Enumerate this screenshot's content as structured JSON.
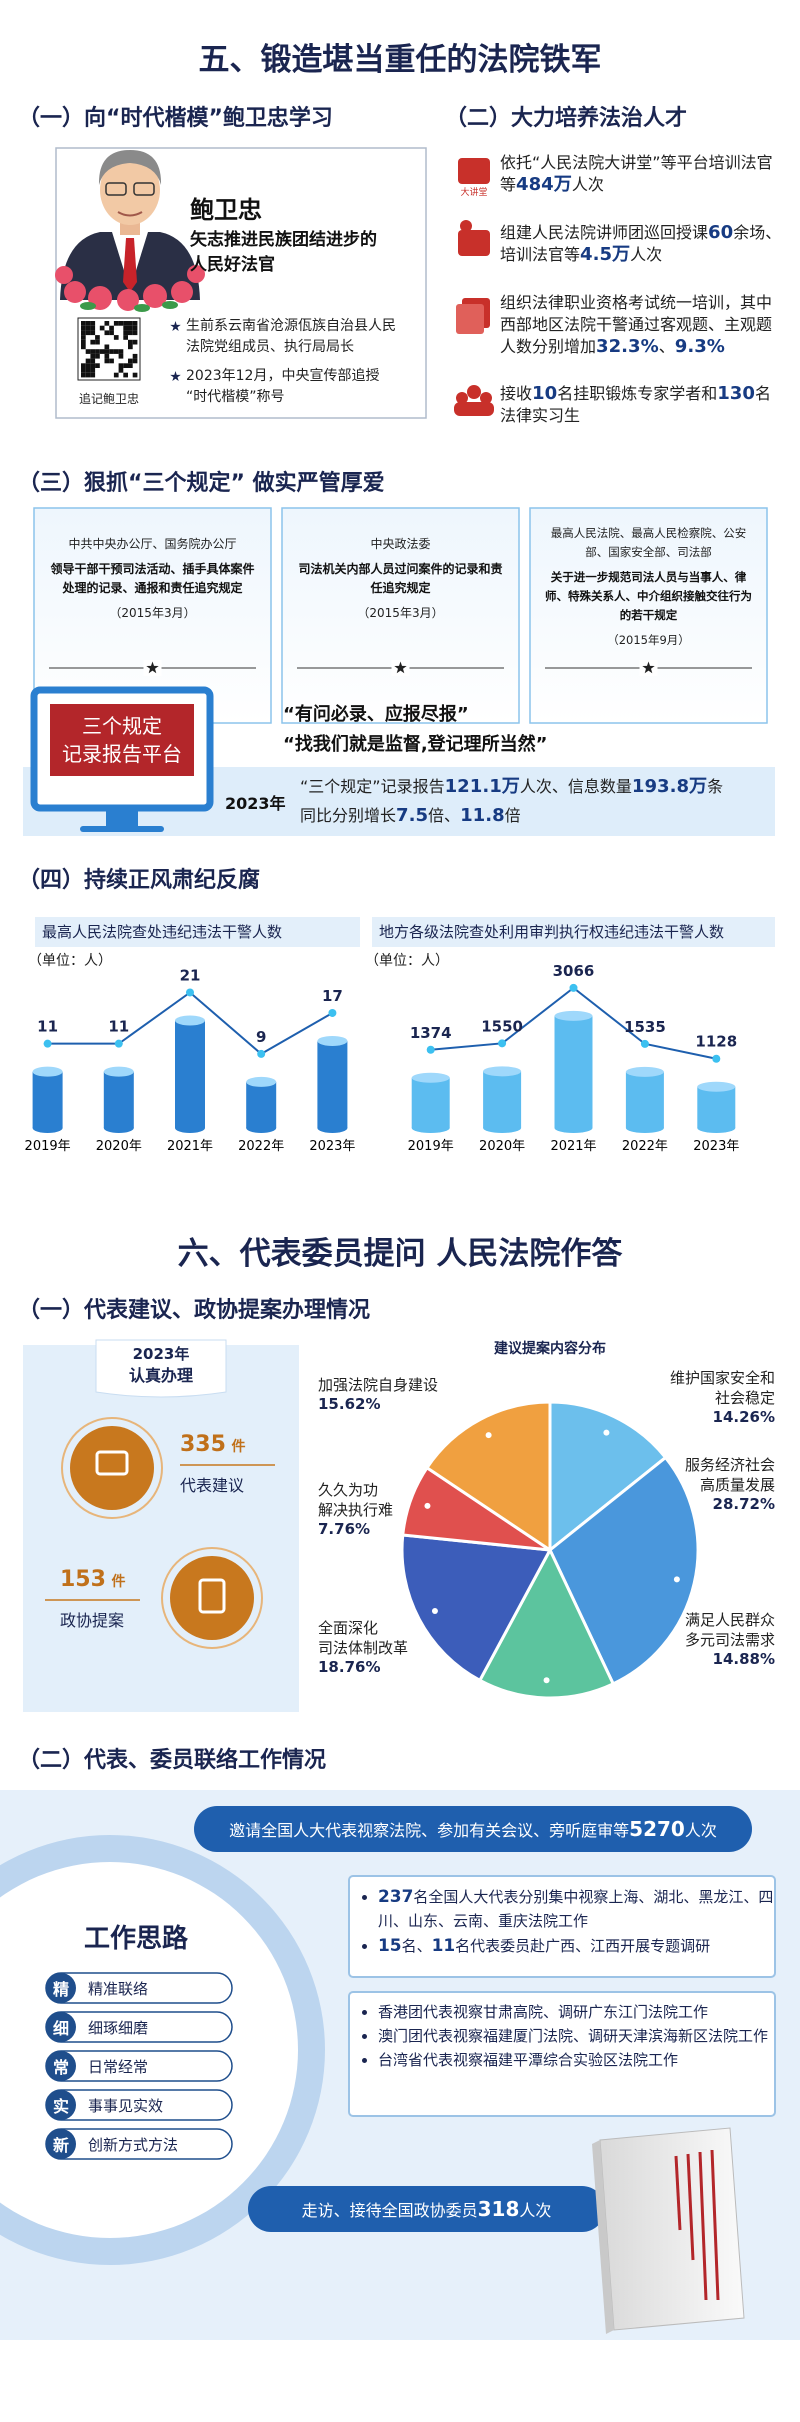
{
  "section5": {
    "title": "五、锻造堪当重任的法院铁军",
    "part1": {
      "heading": "（一）向“时代楷模”鲍卫忠学习",
      "name": "鲍卫忠",
      "tagline": "矢志推进民族团结进步的人民好法官",
      "qr_caption": "追记鲍卫忠",
      "bullets": [
        "生前系云南省沧源佤族自治县人民法院党组成员、执行局局长",
        "2023年12月，中央宣传部追授“时代楷模”称号"
      ]
    },
    "part2": {
      "heading": "（二）大力培养法治人才",
      "icon_label": "大讲堂",
      "items": [
        [
          {
            "text": "依托“人民法院大讲堂”等平台培训法官等"
          },
          {
            "text": "484万",
            "em": true
          },
          {
            "text": "人次"
          }
        ],
        [
          {
            "text": "组建人民法院讲师团巡回授课"
          },
          {
            "text": "60",
            "em": true
          },
          {
            "text": "余场、培训法官等"
          },
          {
            "text": "4.5万",
            "em": true
          },
          {
            "text": "人次"
          }
        ],
        [
          {
            "text": "组织法律职业资格考试统一培训，其中西部地区法院干警通过客观题、主观题人数分别增加"
          },
          {
            "text": "32.3%",
            "em": true
          },
          {
            "text": "、"
          },
          {
            "text": "9.3%",
            "em": true
          }
        ],
        [
          {
            "text": "接收"
          },
          {
            "text": "10",
            "em": true
          },
          {
            "text": "名挂职锻炼专家学者和"
          },
          {
            "text": "130",
            "em": true
          },
          {
            "text": "名法律实习生"
          }
        ]
      ]
    },
    "part3": {
      "heading": "（三）狠抓“三个规定” 做实严管厚爱",
      "cards": [
        {
          "issuer": "中共中央办公厅、国务院办公厅",
          "title": "领导干部干预司法活动、插手具体案件处理的记录、通报和责任追究规定",
          "date": "（2015年3月）"
        },
        {
          "issuer": "中央政法委",
          "title": "司法机关内部人员过问案件的记录和责任追究规定",
          "date": "（2015年3月）"
        },
        {
          "issuer": "最高人民法院、最高人民检察院、公安部、国家安全部、司法部",
          "title": "关于进一步规范司法人员与当事人、律师、特殊关系人、中介组织接触交往行为的若干规定",
          "date": "（2015年9月）"
        }
      ],
      "platform": [
        "三个规定",
        "记录报告平台"
      ],
      "quotes": [
        "“有问必录、应报尽报”",
        "“找我们就是监督,登记理所当然”"
      ],
      "stats": {
        "year": "2023年",
        "lines": [
          [
            {
              "text": "“三个规定”记录报告"
            },
            {
              "text": "121.1万",
              "em": true
            },
            {
              "text": "人次、信息数量"
            },
            {
              "text": "193.8万",
              "em": true
            },
            {
              "text": "条"
            }
          ],
          [
            {
              "text": "同比分别增长"
            },
            {
              "text": "7.5",
              "em": true
            },
            {
              "text": "倍、"
            },
            {
              "text": "11.8",
              "em": true
            },
            {
              "text": "倍"
            }
          ]
        ]
      }
    },
    "part4": {
      "heading": "（四）持续正风肃纪反腐"
    }
  },
  "section6": {
    "title": "六、代表委员提问 人民法院作答",
    "part1": {
      "heading": "（一）代表建议、政协提案办理情况",
      "year": "2023年",
      "label": "认真办理",
      "items": [
        {
          "count": 335,
          "unit": "件",
          "label": "代表建议"
        },
        {
          "count": 153,
          "unit": "件",
          "label": "政协提案"
        }
      ]
    },
    "part2": {
      "heading": "（二）代表、委员联络工作情况",
      "work": {
        "title": "工作思路",
        "items": [
          {
            "char": "精",
            "text": "精准联络"
          },
          {
            "char": "细",
            "text": "细琢细磨"
          },
          {
            "char": "常",
            "text": "日常经常"
          },
          {
            "char": "实",
            "text": "事事见实效"
          },
          {
            "char": "新",
            "text": "创新方式方法"
          }
        ]
      },
      "banner1": [
        {
          "text": "邀请全国人大代表视察法院、参加有关会议、旁听庭审等"
        },
        {
          "text": "5270",
          "em": true
        },
        {
          "text": "人次"
        }
      ],
      "box1": [
        [
          {
            "text": "237",
            "em": true
          },
          {
            "text": "名全国人大代表分别集中视察上海、湖北、黑龙江、四川、山东、云南、重庆法院工作"
          }
        ],
        [
          {
            "text": "15",
            "em": true
          },
          {
            "text": "名、"
          },
          {
            "text": "11",
            "em": true
          },
          {
            "text": "名代表委员赴广西、江西开展专题调研"
          }
        ]
      ],
      "box2": [
        "香港团代表视察甘肃高院、调研广东江门法院工作",
        "澳门团代表视察福建厦门法院、调研天津滨海新区法院工作",
        "台湾省代表视察福建平潭综合实验区法院工作"
      ],
      "banner2": [
        {
          "text": "走访、接待全国政协委员"
        },
        {
          "text": "318",
          "em": true
        },
        {
          "text": "人次"
        }
      ]
    }
  },
  "chart_data": [
    {
      "type": "bar",
      "title": "最高人民法院查处违纪违法干警人数",
      "unit": "（单位：人）",
      "categories": [
        "2019年",
        "2020年",
        "2021年",
        "2022年",
        "2023年"
      ],
      "values": [
        11,
        11,
        21,
        9,
        17
      ],
      "ylim": [
        0,
        25
      ],
      "color": "#2a7fd0",
      "line_color": "#1e5fae"
    },
    {
      "type": "bar",
      "title": "地方各级法院查处利用审判执行权违纪违法干警人数",
      "unit": "（单位：人）",
      "categories": [
        "2019年",
        "2020年",
        "2021年",
        "2022年",
        "2023年"
      ],
      "values": [
        1374,
        1550,
        3066,
        1535,
        1128
      ],
      "ylim": [
        0,
        3500
      ],
      "color": "#5cbcf0",
      "line_color": "#1e5fae"
    },
    {
      "type": "pie",
      "title": "建议提案内容分布",
      "categories": [
        "维护国家安全和\n社会稳定",
        "服务经济社会\n高质量发展",
        "满足人民群众\n多元司法需求",
        "全面深化\n司法体制改革",
        "久久为功\n解决执行难",
        "加强法院自身建设"
      ],
      "values": [
        14.26,
        28.72,
        14.88,
        18.76,
        7.76,
        15.62
      ],
      "value_labels": [
        "14.26%",
        "28.72%",
        "14.88%",
        "18.76%",
        "7.76%",
        "15.62%"
      ],
      "colors": [
        "#6cbfec",
        "#4a97dc",
        "#5cc49e",
        "#3c5dba",
        "#e0504e",
        "#f0a040"
      ]
    }
  ]
}
